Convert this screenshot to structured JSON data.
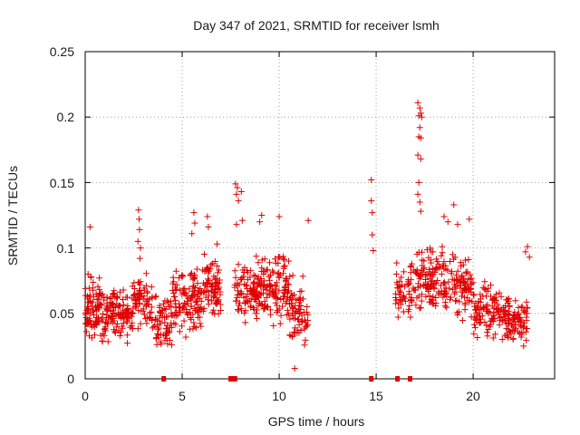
{
  "chart_data": {
    "type": "scatter",
    "title": "Day 347 of 2021, SRMTID for receiver lsmh",
    "xlabel": "GPS time / hours",
    "ylabel": "SRMTID / TECUs",
    "xlim": [
      0,
      24.2
    ],
    "ylim": [
      0,
      0.25
    ],
    "xticks": [
      0,
      5,
      10,
      15,
      20
    ],
    "yticks": [
      0,
      0.05,
      0.1,
      0.15,
      0.2,
      0.25
    ],
    "ytick_labels": [
      "0",
      "0.05",
      "0.1",
      "0.15",
      "0.2",
      "0.25"
    ],
    "grid": true,
    "marker": "+",
    "color": "#e00000",
    "gap_marker_color": "#e00000",
    "zero_markers_x": [
      4.05,
      7.5,
      7.62,
      7.72,
      14.75,
      16.1,
      16.75
    ],
    "clusters": [
      {
        "x": [
          0.0,
          1.0
        ],
        "y": [
          0.02,
          0.085
        ],
        "n": 95
      },
      {
        "x": [
          1.0,
          2.5
        ],
        "y": [
          0.025,
          0.075
        ],
        "n": 120
      },
      {
        "x": [
          2.5,
          3.3
        ],
        "y": [
          0.035,
          0.085
        ],
        "n": 55
      },
      {
        "x": [
          3.3,
          4.5
        ],
        "y": [
          0.015,
          0.075
        ],
        "n": 80
      },
      {
        "x": [
          4.5,
          6.0
        ],
        "y": [
          0.025,
          0.095
        ],
        "n": 120
      },
      {
        "x": [
          6.0,
          7.0
        ],
        "y": [
          0.035,
          0.1
        ],
        "n": 80
      },
      {
        "x": [
          7.7,
          9.0
        ],
        "y": [
          0.035,
          0.1
        ],
        "n": 100
      },
      {
        "x": [
          9.0,
          10.5
        ],
        "y": [
          0.035,
          0.105
        ],
        "n": 120
      },
      {
        "x": [
          10.5,
          11.5
        ],
        "y": [
          0.015,
          0.085
        ],
        "n": 70
      },
      {
        "x": [
          16.0,
          17.0
        ],
        "y": [
          0.04,
          0.095
        ],
        "n": 55
      },
      {
        "x": [
          17.0,
          18.5
        ],
        "y": [
          0.045,
          0.11
        ],
        "n": 115
      },
      {
        "x": [
          18.5,
          20.0
        ],
        "y": [
          0.04,
          0.1
        ],
        "n": 100
      },
      {
        "x": [
          20.0,
          21.5
        ],
        "y": [
          0.025,
          0.08
        ],
        "n": 100
      },
      {
        "x": [
          21.5,
          22.8
        ],
        "y": [
          0.022,
          0.07
        ],
        "n": 95
      }
    ],
    "extra_points": [
      {
        "x": 0.25,
        "y": 0.116
      },
      {
        "x": 0.15,
        "y": 0.08
      },
      {
        "x": 0.3,
        "y": 0.078
      },
      {
        "x": 2.75,
        "y": 0.129
      },
      {
        "x": 2.78,
        "y": 0.122
      },
      {
        "x": 2.8,
        "y": 0.114
      },
      {
        "x": 2.72,
        "y": 0.105
      },
      {
        "x": 2.85,
        "y": 0.1
      },
      {
        "x": 2.82,
        "y": 0.092
      },
      {
        "x": 5.6,
        "y": 0.127
      },
      {
        "x": 5.65,
        "y": 0.119
      },
      {
        "x": 5.5,
        "y": 0.111
      },
      {
        "x": 6.3,
        "y": 0.124
      },
      {
        "x": 6.35,
        "y": 0.116
      },
      {
        "x": 6.8,
        "y": 0.103
      },
      {
        "x": 7.75,
        "y": 0.149
      },
      {
        "x": 7.8,
        "y": 0.141
      },
      {
        "x": 7.85,
        "y": 0.146
      },
      {
        "x": 8.05,
        "y": 0.143
      },
      {
        "x": 7.9,
        "y": 0.136
      },
      {
        "x": 8.1,
        "y": 0.121
      },
      {
        "x": 7.8,
        "y": 0.118
      },
      {
        "x": 9.0,
        "y": 0.12
      },
      {
        "x": 9.1,
        "y": 0.125
      },
      {
        "x": 10.0,
        "y": 0.124
      },
      {
        "x": 11.5,
        "y": 0.121
      },
      {
        "x": 10.8,
        "y": 0.008
      },
      {
        "x": 14.75,
        "y": 0.152
      },
      {
        "x": 14.75,
        "y": 0.136
      },
      {
        "x": 14.8,
        "y": 0.127
      },
      {
        "x": 14.8,
        "y": 0.11
      },
      {
        "x": 14.85,
        "y": 0.098
      },
      {
        "x": 16.05,
        "y": 0.08
      },
      {
        "x": 16.1,
        "y": 0.072
      },
      {
        "x": 16.0,
        "y": 0.062
      },
      {
        "x": 17.15,
        "y": 0.211
      },
      {
        "x": 17.25,
        "y": 0.207
      },
      {
        "x": 17.3,
        "y": 0.203
      },
      {
        "x": 17.35,
        "y": 0.2
      },
      {
        "x": 17.2,
        "y": 0.201
      },
      {
        "x": 17.25,
        "y": 0.192
      },
      {
        "x": 17.2,
        "y": 0.185
      },
      {
        "x": 17.3,
        "y": 0.184
      },
      {
        "x": 17.15,
        "y": 0.171
      },
      {
        "x": 17.3,
        "y": 0.168
      },
      {
        "x": 17.2,
        "y": 0.15
      },
      {
        "x": 17.15,
        "y": 0.141
      },
      {
        "x": 17.25,
        "y": 0.135
      },
      {
        "x": 17.3,
        "y": 0.128
      },
      {
        "x": 19.0,
        "y": 0.133
      },
      {
        "x": 18.5,
        "y": 0.124
      },
      {
        "x": 18.7,
        "y": 0.12
      },
      {
        "x": 19.2,
        "y": 0.118
      },
      {
        "x": 19.8,
        "y": 0.122
      },
      {
        "x": 22.8,
        "y": 0.101
      },
      {
        "x": 22.7,
        "y": 0.097
      },
      {
        "x": 22.9,
        "y": 0.093
      },
      {
        "x": 22.6,
        "y": 0.025
      }
    ]
  }
}
